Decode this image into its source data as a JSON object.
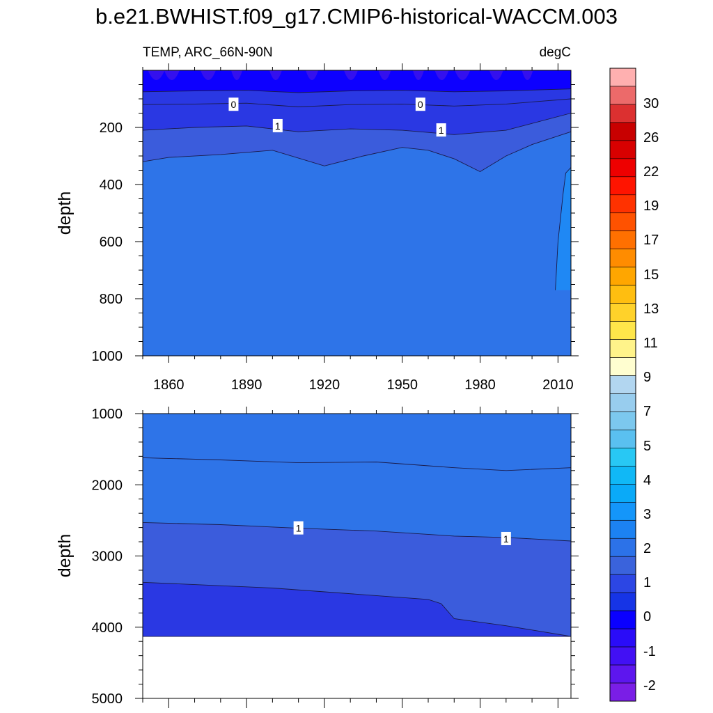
{
  "title": "b.e21.BWHIST.f09_g17.CMIP6-historical-WACCM.003",
  "variable_label": "TEMP, ARC_66N-90N",
  "units_label": "degC",
  "colors": {
    "bg": "#ffffff",
    "t_lt_m1": "#3410ee",
    "t_m1_0": "#0d00ff",
    "t_0_05": "#2a38e3",
    "t_05_1": "#3b5cdc",
    "t_1_15": "#2e74e8",
    "t_15_2": "#1f88f4"
  },
  "colorbar": {
    "colors": [
      "#7a1ee6",
      "#5d16ee",
      "#4210f4",
      "#2a0cf8",
      "#0a00ff",
      "#1634e6",
      "#2c46e4",
      "#3a63dc",
      "#2c72e8",
      "#1c82f2",
      "#1496fa",
      "#0aaaf8",
      "#10b8f6",
      "#28c8f4",
      "#5ac0f0",
      "#7cc8ee",
      "#98cdee",
      "#b2d6f0",
      "#fffed0",
      "#fff38a",
      "#ffe64a",
      "#ffd22a",
      "#ffbe10",
      "#ffa600",
      "#ff8c00",
      "#ff7000",
      "#ff5200",
      "#ff3200",
      "#ff1400",
      "#ee0000",
      "#d80000",
      "#c80000",
      "#dc3030",
      "#ec6a6a",
      "#ffb0b0"
    ],
    "labels": [
      "30",
      "26",
      "22",
      "19",
      "17",
      "15",
      "13",
      "11",
      "9",
      "7",
      "5",
      "4",
      "3",
      "2",
      "1",
      "0",
      "-1",
      "-2"
    ]
  },
  "chart_data": [
    {
      "type": "contour",
      "panel": "upper",
      "variable": "TEMP, ARC_66N-90N",
      "units": "degC",
      "ylabel": "depth",
      "x_ticks": [
        1860,
        1890,
        1920,
        1950,
        1980,
        2010
      ],
      "xlim": [
        1850,
        2015
      ],
      "y_ticks": [
        200,
        400,
        600,
        800,
        1000
      ],
      "ylim": [
        1000,
        0
      ],
      "y_inverted": true,
      "contour_labels": [
        {
          "text": "0",
          "x": 1885,
          "depth": 120
        },
        {
          "text": "1",
          "x": 1902,
          "depth": 195
        },
        {
          "text": "0",
          "x": 1957,
          "depth": 120
        },
        {
          "text": "1",
          "x": 1965,
          "depth": 210
        }
      ],
      "contours": [
        {
          "level": -1,
          "min_depth_below_surface": 35
        },
        {
          "level": 0,
          "x": [
            1850,
            1870,
            1890,
            1910,
            1930,
            1950,
            1970,
            1990,
            2015
          ],
          "depth": [
            75,
            72,
            70,
            78,
            72,
            70,
            75,
            72,
            65
          ]
        },
        {
          "level": 0.5,
          "x": [
            1850,
            1870,
            1890,
            1910,
            1930,
            1950,
            1970,
            1990,
            2015
          ],
          "depth": [
            120,
            118,
            115,
            128,
            120,
            118,
            125,
            118,
            100
          ]
        },
        {
          "level": 1,
          "x": [
            1850,
            1870,
            1890,
            1910,
            1930,
            1950,
            1970,
            1990,
            2015
          ],
          "depth": [
            210,
            200,
            195,
            215,
            205,
            210,
            225,
            210,
            150
          ]
        },
        {
          "level": 1.5,
          "x": [
            1850,
            1860,
            1880,
            1900,
            1920,
            1935,
            1950,
            1960,
            1970,
            1980,
            1990,
            2000,
            2015
          ],
          "depth": [
            320,
            305,
            295,
            280,
            335,
            300,
            270,
            280,
            310,
            355,
            300,
            260,
            215
          ]
        },
        {
          "level": 2,
          "x": [
            2009,
            2010,
            2012,
            2013,
            2015
          ],
          "depth": [
            770,
            600,
            430,
            360,
            340
          ]
        }
      ]
    },
    {
      "type": "contour",
      "panel": "lower",
      "ylabel": "depth",
      "y_ticks": [
        1000,
        2000,
        3000,
        4000,
        5000
      ],
      "ylim": [
        5000,
        1000
      ],
      "y_inverted": true,
      "ocean_bottom_depth": 4130,
      "contour_labels": [
        {
          "text": "1",
          "x": 1910,
          "depth": 2610
        },
        {
          "text": "1",
          "x": 1990,
          "depth": 2760
        }
      ],
      "contours": [
        {
          "level": 1.5,
          "x": [
            1850,
            1880,
            1910,
            1940,
            1970,
            1990,
            2015
          ],
          "depth": [
            1620,
            1650,
            1690,
            1680,
            1760,
            1800,
            1760
          ]
        },
        {
          "level": 1,
          "x": [
            1850,
            1880,
            1910,
            1940,
            1970,
            1990,
            2015
          ],
          "depth": [
            2530,
            2560,
            2610,
            2650,
            2720,
            2740,
            2790
          ]
        },
        {
          "level": 0.5,
          "x": [
            1850,
            1900,
            1960,
            1965,
            1970,
            1990,
            2015
          ],
          "depth": [
            3370,
            3450,
            3610,
            3670,
            3880,
            3980,
            4130
          ]
        }
      ]
    }
  ]
}
